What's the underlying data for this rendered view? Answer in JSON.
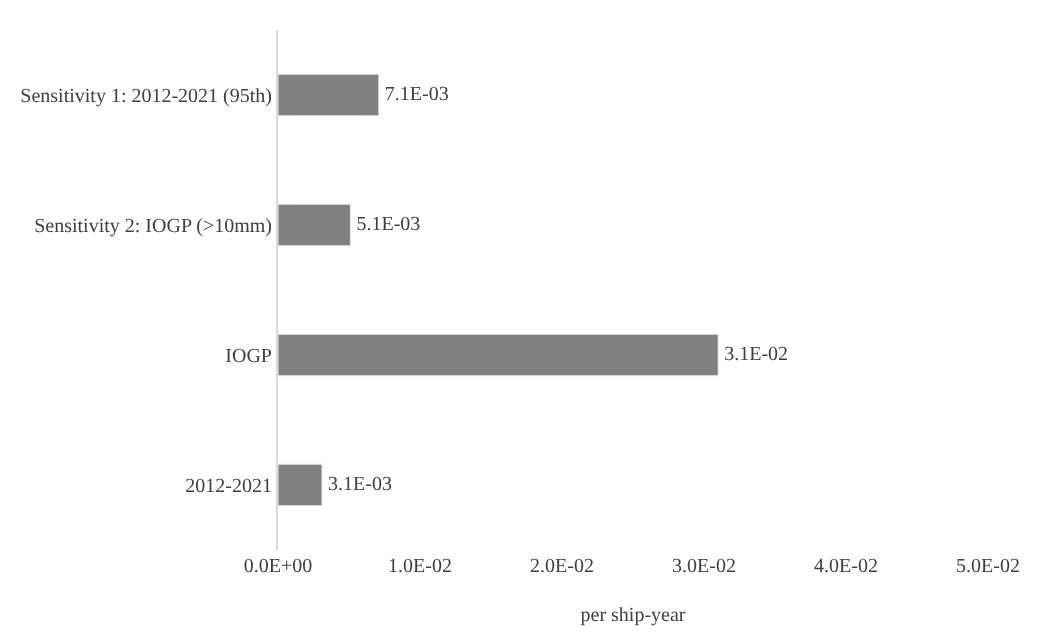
{
  "chart_data": {
    "type": "bar",
    "orientation": "horizontal",
    "xlabel": "per ship-year",
    "categories": [
      "Sensitivity 1: 2012-2021 (95th)",
      "Sensitivity 2: IOGP (>10mm)",
      "IOGP",
      "2012-2021"
    ],
    "values": [
      0.0071,
      0.0051,
      0.031,
      0.0031
    ],
    "value_labels": [
      "7.1E-03",
      "5.1E-03",
      "3.1E-02",
      "3.1E-03"
    ],
    "color": "#808080",
    "xlim": [
      0,
      0.05
    ],
    "xticks": [
      {
        "value": 0,
        "label": "0.0E+00"
      },
      {
        "value": 0.01,
        "label": "1.0E-02"
      },
      {
        "value": 0.02,
        "label": "2.0E-02"
      },
      {
        "value": 0.03,
        "label": "3.0E-02"
      },
      {
        "value": 0.04,
        "label": "4.0E-02"
      },
      {
        "value": 0.05,
        "label": "5.0E-02"
      }
    ],
    "legend": false
  }
}
